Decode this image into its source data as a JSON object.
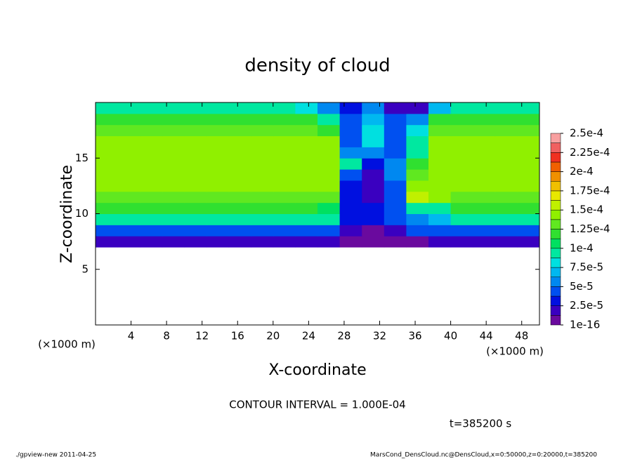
{
  "chart_data": {
    "type": "heatmap",
    "title": "density of cloud",
    "x_label": "X-coordinate",
    "y_label": "Z-coordinate",
    "x_unit": "(×1000 m)",
    "x_unit_right": "(×1000 m)",
    "note": "CONTOUR INTERVAL = 1.000E-04",
    "time": "t=385200 s",
    "footer_left": "./gpview-new   2011-04-25",
    "footer_right": "MarsCond_DensCloud.nc@DensCloud,x=0:50000,z=0:20000,t=385200",
    "xlim": [
      0,
      50
    ],
    "ylim": [
      0,
      20
    ],
    "xticks": [
      4,
      8,
      12,
      16,
      20,
      24,
      28,
      32,
      36,
      40,
      44,
      48
    ],
    "yticks": [
      5,
      10,
      15
    ],
    "x": [
      1.25,
      3.75,
      6.25,
      8.75,
      11.25,
      13.75,
      16.25,
      18.75,
      21.25,
      23.75,
      26.25,
      28.75,
      31.25,
      33.75,
      36.25,
      38.75,
      41.25,
      43.75,
      46.25,
      48.75
    ],
    "y": [
      7.5,
      8.5,
      9.5,
      10.5,
      11.5,
      12.5,
      13.5,
      14.5,
      15.5,
      16.5,
      17.5,
      18.5,
      19.5
    ],
    "values": [
      [
        2e-05,
        2e-05,
        2e-05,
        2e-05,
        2e-05,
        2e-05,
        2e-05,
        2e-05,
        2e-05,
        2e-05,
        2e-05,
        1e-05,
        1e-05,
        1e-05,
        1e-05,
        2e-05,
        2e-05,
        2e-05,
        2e-05,
        2e-05
      ],
      [
        5e-05,
        5e-05,
        5e-05,
        5e-05,
        5e-05,
        5e-05,
        5e-05,
        5e-05,
        5e-05,
        5e-05,
        5e-05,
        2e-05,
        1e-05,
        2e-05,
        4e-05,
        5e-05,
        5e-05,
        5e-05,
        5e-05,
        5e-05
      ],
      [
        9e-05,
        9e-05,
        9e-05,
        9e-05,
        9e-05,
        9e-05,
        9e-05,
        9e-05,
        9e-05,
        9e-05,
        9e-05,
        3e-05,
        3e-05,
        4e-05,
        6e-05,
        7e-05,
        9e-05,
        9e-05,
        9e-05,
        9e-05
      ],
      [
        0.00012,
        0.00012,
        0.00012,
        0.00012,
        0.00012,
        0.00012,
        0.00012,
        0.00012,
        0.00012,
        0.00012,
        0.00011,
        3e-05,
        3e-05,
        5e-05,
        9e-05,
        0.0001,
        0.00012,
        0.00012,
        0.00012,
        0.00012
      ],
      [
        0.000135,
        0.000135,
        0.000135,
        0.000135,
        0.000135,
        0.000135,
        0.000135,
        0.000135,
        0.000135,
        0.000135,
        0.00013,
        3e-05,
        2e-05,
        5e-05,
        0.00016,
        0.00014,
        0.000135,
        0.000135,
        0.000135,
        0.000135
      ],
      [
        0.00014,
        0.00014,
        0.00014,
        0.00014,
        0.00014,
        0.00014,
        0.00014,
        0.00014,
        0.00014,
        0.00014,
        0.00014,
        3e-05,
        2e-05,
        5e-05,
        0.00014,
        0.00014,
        0.00014,
        0.00014,
        0.00014,
        0.00014
      ],
      [
        0.00014,
        0.00014,
        0.00014,
        0.00014,
        0.00014,
        0.00014,
        0.00014,
        0.00014,
        0.00014,
        0.00014,
        0.00014,
        5e-05,
        2e-05,
        6e-05,
        0.00013,
        0.00014,
        0.00014,
        0.00014,
        0.00014,
        0.00014
      ],
      [
        0.000145,
        0.000145,
        0.000145,
        0.000145,
        0.000145,
        0.000145,
        0.000145,
        0.000145,
        0.000145,
        0.000145,
        0.000145,
        0.0001,
        3e-05,
        6e-05,
        0.00012,
        0.000145,
        0.000145,
        0.000145,
        0.000145,
        0.000145
      ],
      [
        0.000145,
        0.000145,
        0.000145,
        0.000145,
        0.000145,
        0.000145,
        0.000145,
        0.000145,
        0.000145,
        0.000145,
        0.000145,
        6e-05,
        6e-05,
        5e-05,
        0.0001,
        0.000145,
        0.000145,
        0.000145,
        0.000145,
        0.000145
      ],
      [
        0.00014,
        0.00014,
        0.00014,
        0.00014,
        0.00014,
        0.00014,
        0.00014,
        0.00014,
        0.00014,
        0.00014,
        0.00014,
        5e-05,
        8e-05,
        5e-05,
        9e-05,
        0.00014,
        0.00014,
        0.00014,
        0.00014,
        0.00014
      ],
      [
        0.000135,
        0.000135,
        0.000135,
        0.000135,
        0.000135,
        0.000135,
        0.000135,
        0.000135,
        0.000135,
        0.000135,
        0.00012,
        5e-05,
        8e-05,
        5e-05,
        8e-05,
        0.000135,
        0.000135,
        0.000135,
        0.000135,
        0.000135
      ],
      [
        0.00012,
        0.00012,
        0.00012,
        0.00012,
        0.00012,
        0.00012,
        0.00012,
        0.00012,
        0.00012,
        0.00012,
        0.0001,
        4e-05,
        7e-05,
        4e-05,
        6e-05,
        0.00012,
        0.00012,
        0.00012,
        0.00012,
        0.00012
      ],
      [
        0.0001,
        0.0001,
        0.0001,
        0.0001,
        0.0001,
        0.0001,
        0.0001,
        0.0001,
        0.0001,
        8e-05,
        6e-05,
        3e-05,
        6e-05,
        2e-05,
        2e-05,
        7e-05,
        0.0001,
        0.0001,
        0.0001,
        0.0001
      ]
    ],
    "colorbar_ticks": [
      {
        "value": 1e-16,
        "label": "1e-16"
      },
      {
        "value": 2.5e-05,
        "label": "2.5e-5"
      },
      {
        "value": 5e-05,
        "label": "5e-5"
      },
      {
        "value": 7.5e-05,
        "label": "7.5e-5"
      },
      {
        "value": 0.0001,
        "label": "1e-4"
      },
      {
        "value": 0.000125,
        "label": "1.25e-4"
      },
      {
        "value": 0.00015,
        "label": "1.5e-4"
      },
      {
        "value": 0.000175,
        "label": "1.75e-4"
      },
      {
        "value": 0.0002,
        "label": "2e-4"
      },
      {
        "value": 0.000225,
        "label": "2.25e-4"
      },
      {
        "value": 0.00025,
        "label": "2.5e-4"
      }
    ],
    "colormap": [
      "#6a0a9e",
      "#3a00c0",
      "#0010e0",
      "#0050f0",
      "#0088f0",
      "#00b8f0",
      "#00e0e0",
      "#00e8a0",
      "#00e060",
      "#30e030",
      "#60e820",
      "#90f000",
      "#c0f000",
      "#e8e800",
      "#f0c000",
      "#f09000",
      "#f06000",
      "#f03020",
      "#f06060",
      "#f8a0a0"
    ]
  }
}
